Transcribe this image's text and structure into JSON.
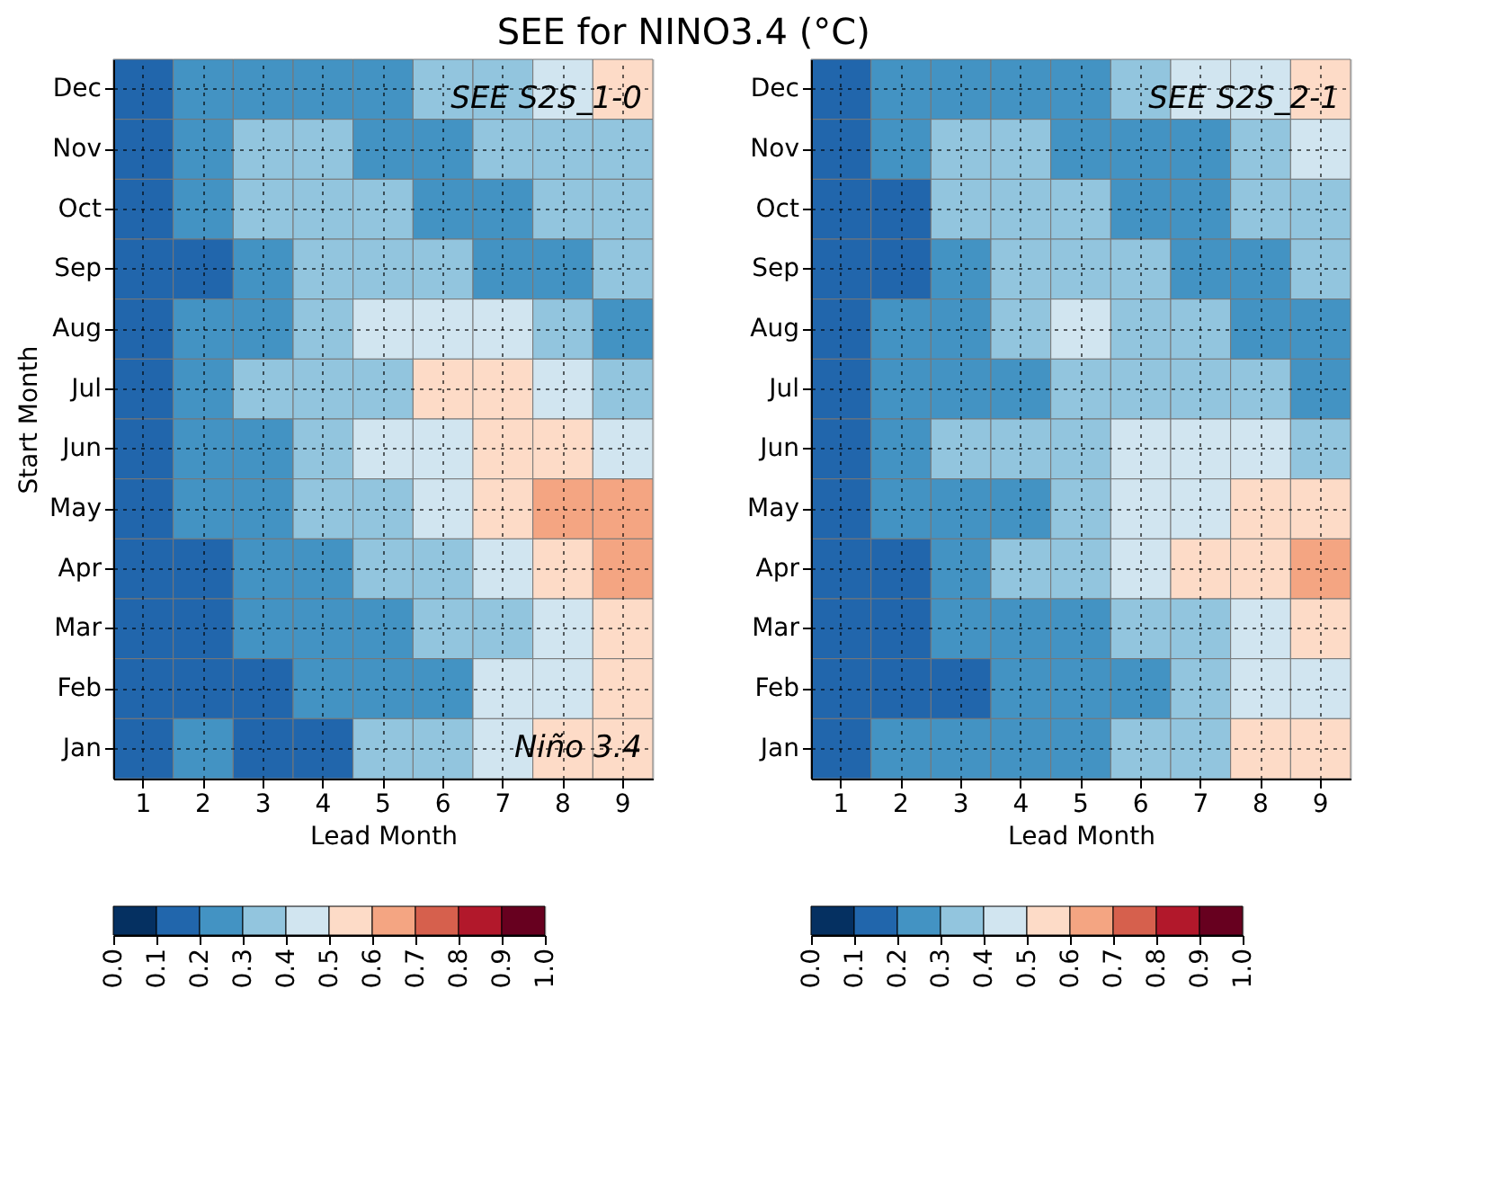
{
  "chart_data": [
    {
      "type": "heatmap",
      "title": "SEE  for NINO3.4   (°C)",
      "xlabel": "Lead Month",
      "ylabel": "Start Month",
      "annotations": [
        "SEE S2S_1-0",
        "Niño 3.4"
      ],
      "grid": true,
      "categories": [
        "1",
        "2",
        "3",
        "4",
        "5",
        "6",
        "7",
        "8",
        "9"
      ],
      "y_categories": [
        "Dec",
        "Nov",
        "Oct",
        "Sep",
        "Aug",
        "Jul",
        "Jun",
        "May",
        "Apr",
        "Mar",
        "Feb",
        "Jan"
      ],
      "cells": [
        [
          0.15,
          0.25,
          0.25,
          0.25,
          0.25,
          0.35,
          0.35,
          0.45,
          0.55
        ],
        [
          0.15,
          0.25,
          0.35,
          0.35,
          0.25,
          0.25,
          0.35,
          0.35,
          0.35
        ],
        [
          0.15,
          0.25,
          0.35,
          0.35,
          0.35,
          0.25,
          0.25,
          0.35,
          0.35
        ],
        [
          0.15,
          0.15,
          0.25,
          0.35,
          0.35,
          0.35,
          0.25,
          0.25,
          0.35
        ],
        [
          0.15,
          0.25,
          0.25,
          0.35,
          0.45,
          0.45,
          0.45,
          0.35,
          0.25
        ],
        [
          0.15,
          0.25,
          0.35,
          0.35,
          0.35,
          0.55,
          0.55,
          0.45,
          0.35
        ],
        [
          0.15,
          0.25,
          0.25,
          0.35,
          0.45,
          0.45,
          0.55,
          0.55,
          0.45
        ],
        [
          0.15,
          0.25,
          0.25,
          0.35,
          0.35,
          0.45,
          0.55,
          0.65,
          0.65
        ],
        [
          0.15,
          0.15,
          0.25,
          0.25,
          0.35,
          0.35,
          0.45,
          0.55,
          0.65
        ],
        [
          0.15,
          0.15,
          0.25,
          0.25,
          0.25,
          0.35,
          0.35,
          0.45,
          0.55
        ],
        [
          0.15,
          0.15,
          0.15,
          0.25,
          0.25,
          0.25,
          0.45,
          0.45,
          0.55
        ],
        [
          0.15,
          0.25,
          0.15,
          0.15,
          0.35,
          0.35,
          0.45,
          0.55,
          0.55
        ]
      ],
      "clim": [
        0,
        1
      ],
      "cticks": [
        {
          "value": 0,
          "label": "0.0"
        },
        0.1,
        0.2,
        0.3,
        0.4,
        0.5,
        0.6,
        0.7,
        0.8,
        0.9,
        {
          "value": 1,
          "label": "1.0"
        }
      ],
      "colors": [
        "#053061",
        "#2166ac",
        "#4393c3",
        "#92c5de",
        "#d1e5f0",
        "#fddbc7",
        "#f4a582",
        "#d6604d",
        "#b2182b",
        "#67001f"
      ]
    },
    {
      "type": "heatmap",
      "xlabel": "Lead Month",
      "annotations": [
        "SEE S2S_2-1"
      ],
      "grid": true,
      "categories": [
        "1",
        "2",
        "3",
        "4",
        "5",
        "6",
        "7",
        "8",
        "9"
      ],
      "y_categories": [
        "Dec",
        "Nov",
        "Oct",
        "Sep",
        "Aug",
        "Jul",
        "Jun",
        "May",
        "Apr",
        "Mar",
        "Feb",
        "Jan"
      ],
      "cells": [
        [
          0.15,
          0.25,
          0.25,
          0.25,
          0.25,
          0.35,
          0.45,
          0.45,
          0.55
        ],
        [
          0.15,
          0.25,
          0.35,
          0.35,
          0.25,
          0.25,
          0.25,
          0.35,
          0.45
        ],
        [
          0.15,
          0.15,
          0.35,
          0.35,
          0.35,
          0.25,
          0.25,
          0.35,
          0.35
        ],
        [
          0.15,
          0.15,
          0.25,
          0.35,
          0.35,
          0.35,
          0.25,
          0.25,
          0.35
        ],
        [
          0.15,
          0.25,
          0.25,
          0.35,
          0.45,
          0.35,
          0.35,
          0.25,
          0.25
        ],
        [
          0.15,
          0.25,
          0.25,
          0.25,
          0.35,
          0.35,
          0.35,
          0.35,
          0.25
        ],
        [
          0.15,
          0.25,
          0.35,
          0.35,
          0.35,
          0.45,
          0.45,
          0.45,
          0.35
        ],
        [
          0.15,
          0.25,
          0.25,
          0.25,
          0.35,
          0.45,
          0.45,
          0.55,
          0.55
        ],
        [
          0.15,
          0.15,
          0.25,
          0.35,
          0.35,
          0.45,
          0.55,
          0.55,
          0.65
        ],
        [
          0.15,
          0.15,
          0.25,
          0.25,
          0.25,
          0.35,
          0.35,
          0.45,
          0.55
        ],
        [
          0.15,
          0.15,
          0.15,
          0.25,
          0.25,
          0.25,
          0.35,
          0.45,
          0.45
        ],
        [
          0.15,
          0.25,
          0.25,
          0.25,
          0.25,
          0.35,
          0.35,
          0.55,
          0.55
        ]
      ],
      "clim": [
        0,
        1
      ],
      "cticks": [
        {
          "value": 0,
          "label": "0.0"
        },
        0.1,
        0.2,
        0.3,
        0.4,
        0.5,
        0.6,
        0.7,
        0.8,
        0.9,
        {
          "value": 1,
          "label": "1.0"
        }
      ],
      "colors": [
        "#053061",
        "#2166ac",
        "#4393c3",
        "#92c5de",
        "#d1e5f0",
        "#fddbc7",
        "#f4a582",
        "#d6604d",
        "#b2182b",
        "#67001f"
      ]
    }
  ]
}
